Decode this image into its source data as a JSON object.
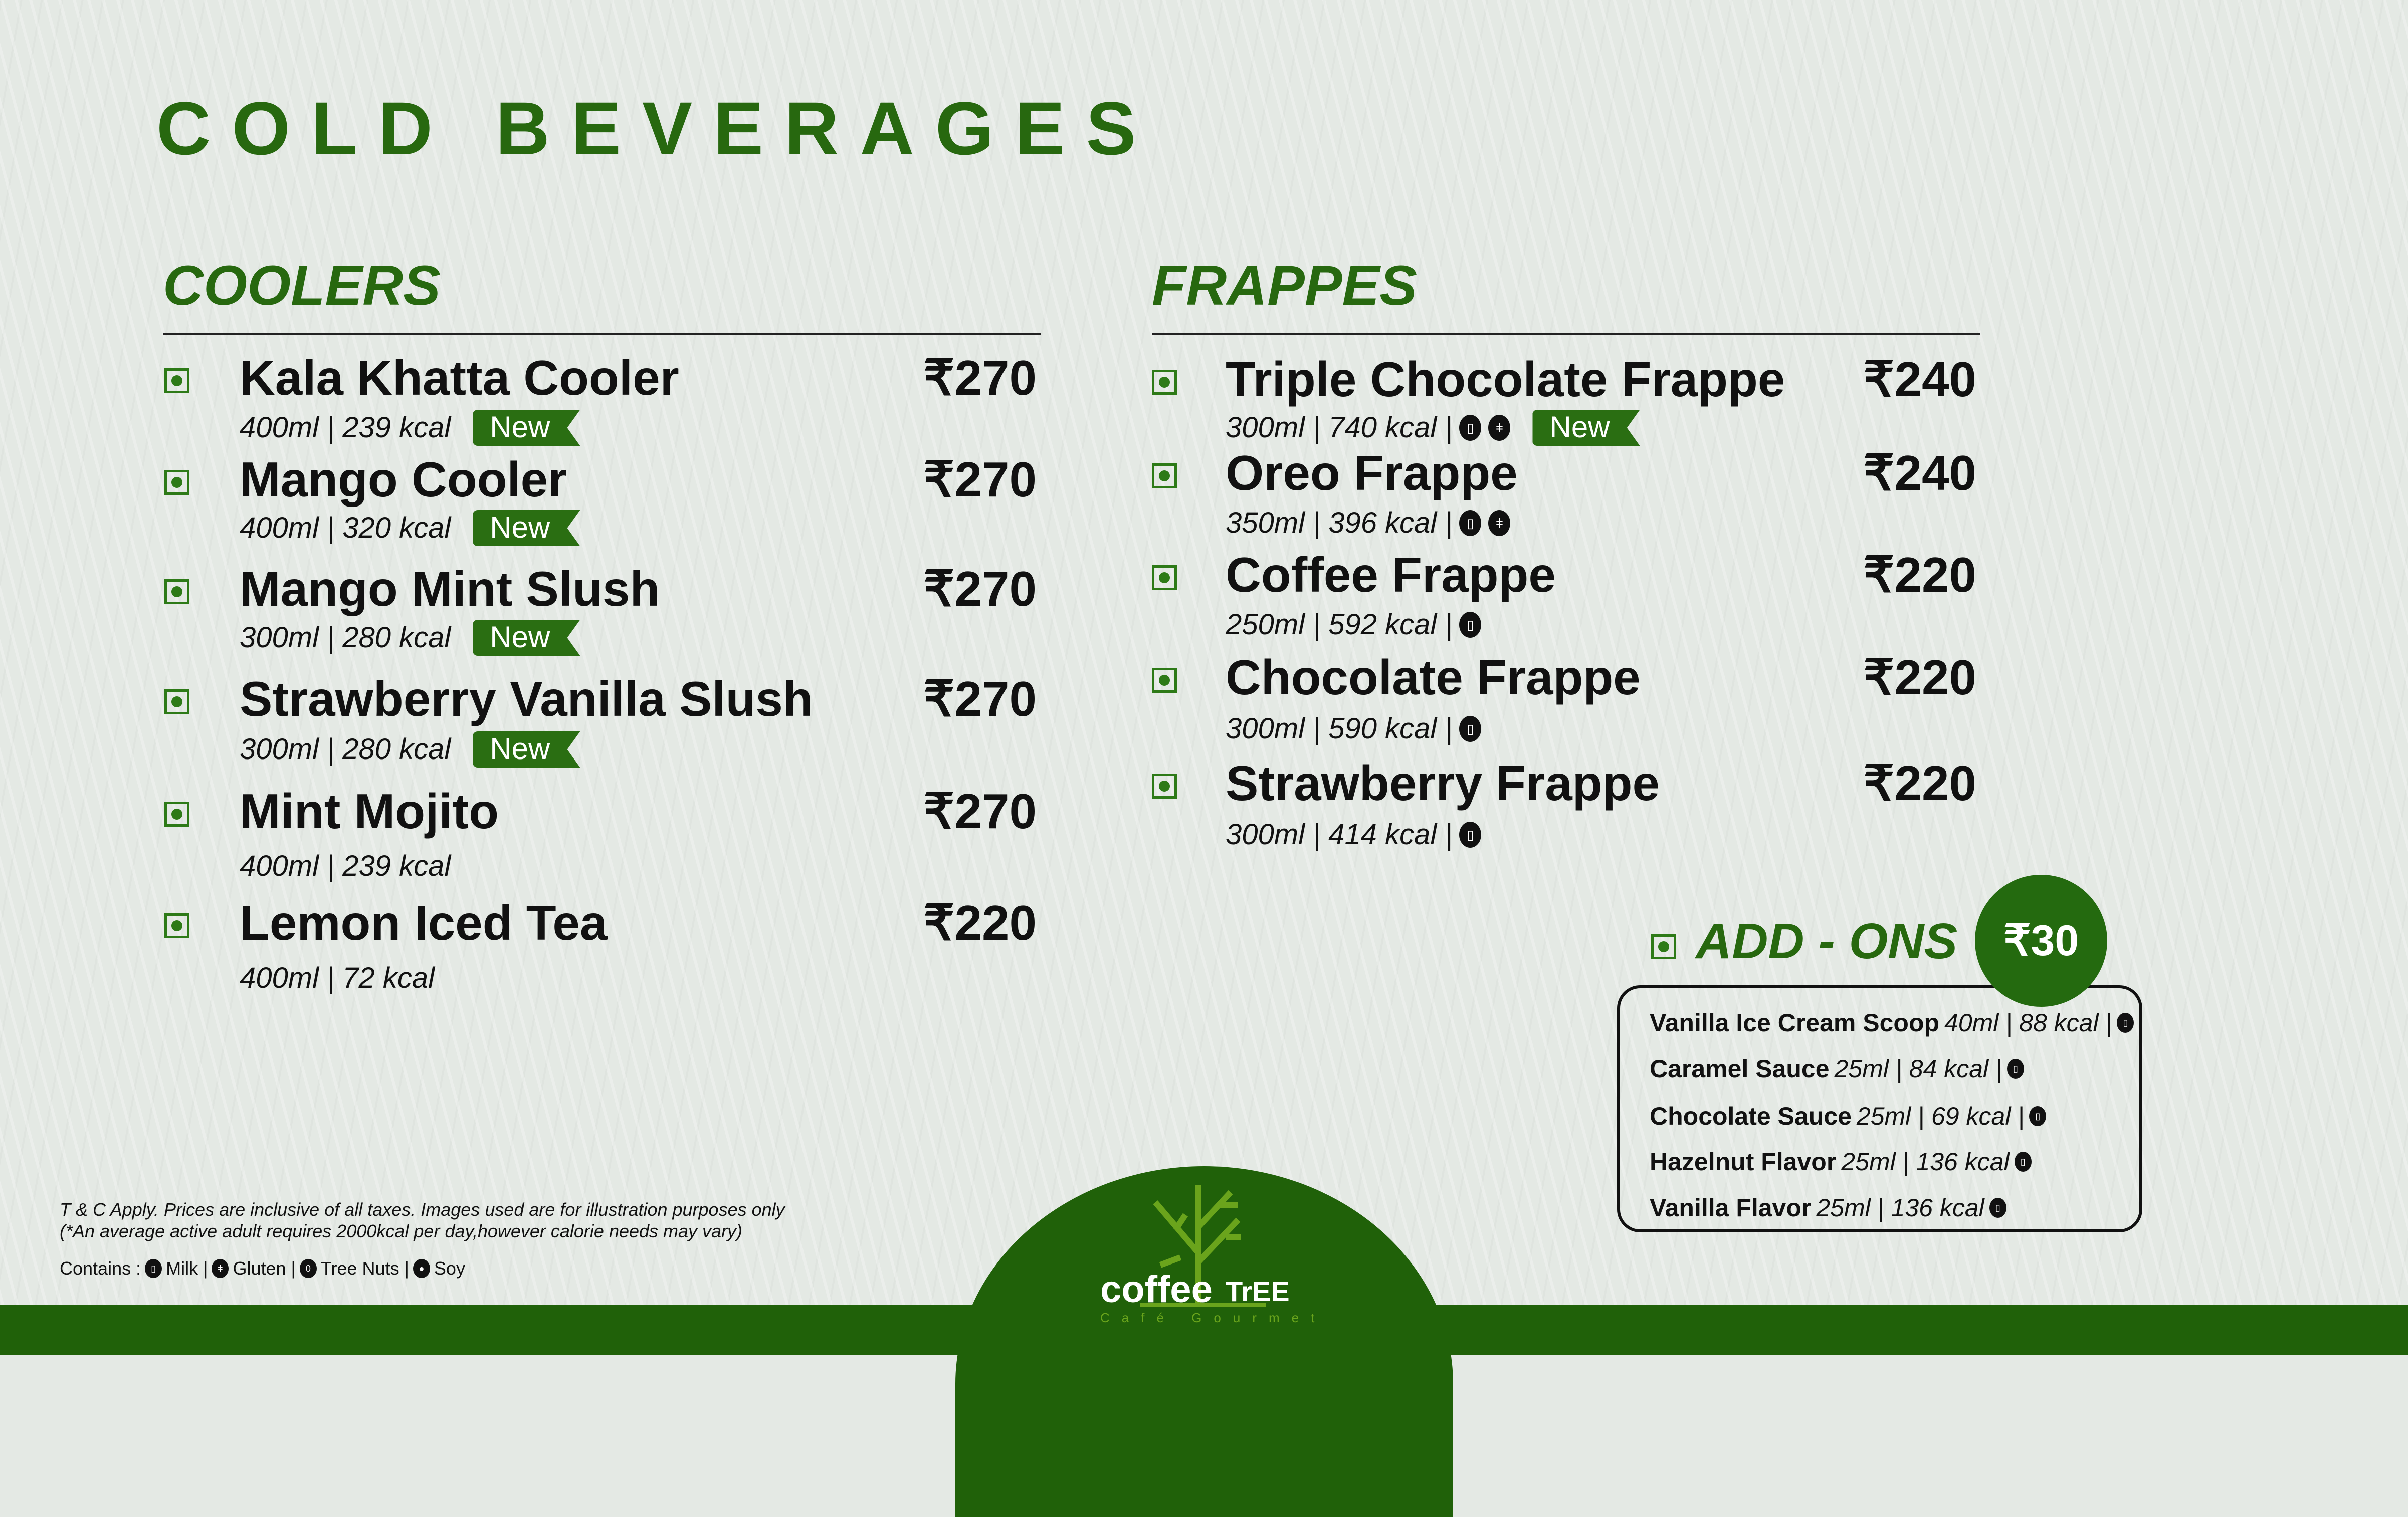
{
  "title": "COLD BEVERAGES",
  "colors": {
    "brand_green": "#27680f",
    "dark_green": "#206109",
    "logo_green": "#6aa41c",
    "background": "#e4e9e4"
  },
  "coolers": {
    "heading": "COOLERS",
    "items": [
      {
        "name": "Kala Khatta Cooler",
        "price": "₹270",
        "detail": "400ml | 239 kcal",
        "badge": "New"
      },
      {
        "name": "Mango Cooler",
        "price": "₹270",
        "detail": "400ml | 320 kcal",
        "badge": "New"
      },
      {
        "name": "Mango Mint Slush",
        "price": "₹270",
        "detail": "300ml | 280 kcal",
        "badge": "New"
      },
      {
        "name": "Strawberry Vanilla Slush",
        "price": "₹270",
        "detail": "300ml | 280 kcal",
        "badge": "New"
      },
      {
        "name": "Mint Mojito",
        "price": "₹270",
        "detail": "400ml | 239 kcal"
      },
      {
        "name": "Lemon Iced Tea",
        "price": "₹220",
        "detail": "400ml | 72 kcal"
      }
    ]
  },
  "frappes": {
    "heading": "FRAPPES",
    "items": [
      {
        "name": "Triple Chocolate Frappe",
        "price": "₹240",
        "detail": "300ml | 740 kcal |",
        "allergens": [
          "milk-icon",
          "gluten-icon"
        ],
        "badge": "New"
      },
      {
        "name": "Oreo Frappe",
        "price": "₹240",
        "detail": "350ml | 396 kcal |",
        "allergens": [
          "milk-icon",
          "gluten-icon"
        ]
      },
      {
        "name": "Coffee Frappe",
        "price": "₹220",
        "detail": "250ml | 592 kcal |",
        "allergens": [
          "milk-icon"
        ]
      },
      {
        "name": "Chocolate Frappe",
        "price": "₹220",
        "detail": "300ml | 590 kcal |",
        "allergens": [
          "milk-icon"
        ]
      },
      {
        "name": "Strawberry Frappe",
        "price": "₹220",
        "detail": "300ml | 414 kcal |",
        "allergens": [
          "milk-icon"
        ]
      }
    ]
  },
  "addons": {
    "heading": "ADD - ONS",
    "price": "₹30",
    "items": [
      {
        "name": "Vanilla Ice Cream Scoop",
        "detail": "40ml | 88 kcal |"
      },
      {
        "name": "Caramel Sauce",
        "detail": "25ml | 84 kcal |"
      },
      {
        "name": "Chocolate Sauce",
        "detail": "25ml | 69 kcal |"
      },
      {
        "name": "Hazelnut Flavor",
        "detail": "25ml | 136 kcal"
      },
      {
        "name": "Vanilla Flavor",
        "detail": "25ml | 136 kcal"
      }
    ]
  },
  "footer": {
    "terms": "T & C Apply. Prices are inclusive of all taxes. Images used are for illustration purposes only",
    "calorie_note": "(*An average active adult requires 2000kcal per day,however calorie needs may vary)",
    "contains_label": "Contains :",
    "legend": [
      {
        "icon": "milk-icon",
        "label": "Milk |"
      },
      {
        "icon": "gluten-icon",
        "label": "Gluten |"
      },
      {
        "icon": "tree-nuts-icon",
        "label": "Tree Nuts |"
      },
      {
        "icon": "soy-icon",
        "label": "Soy"
      }
    ]
  },
  "logo": {
    "word1": "coffee",
    "word2": "TrEE",
    "tagline": "Café Gourmet"
  }
}
